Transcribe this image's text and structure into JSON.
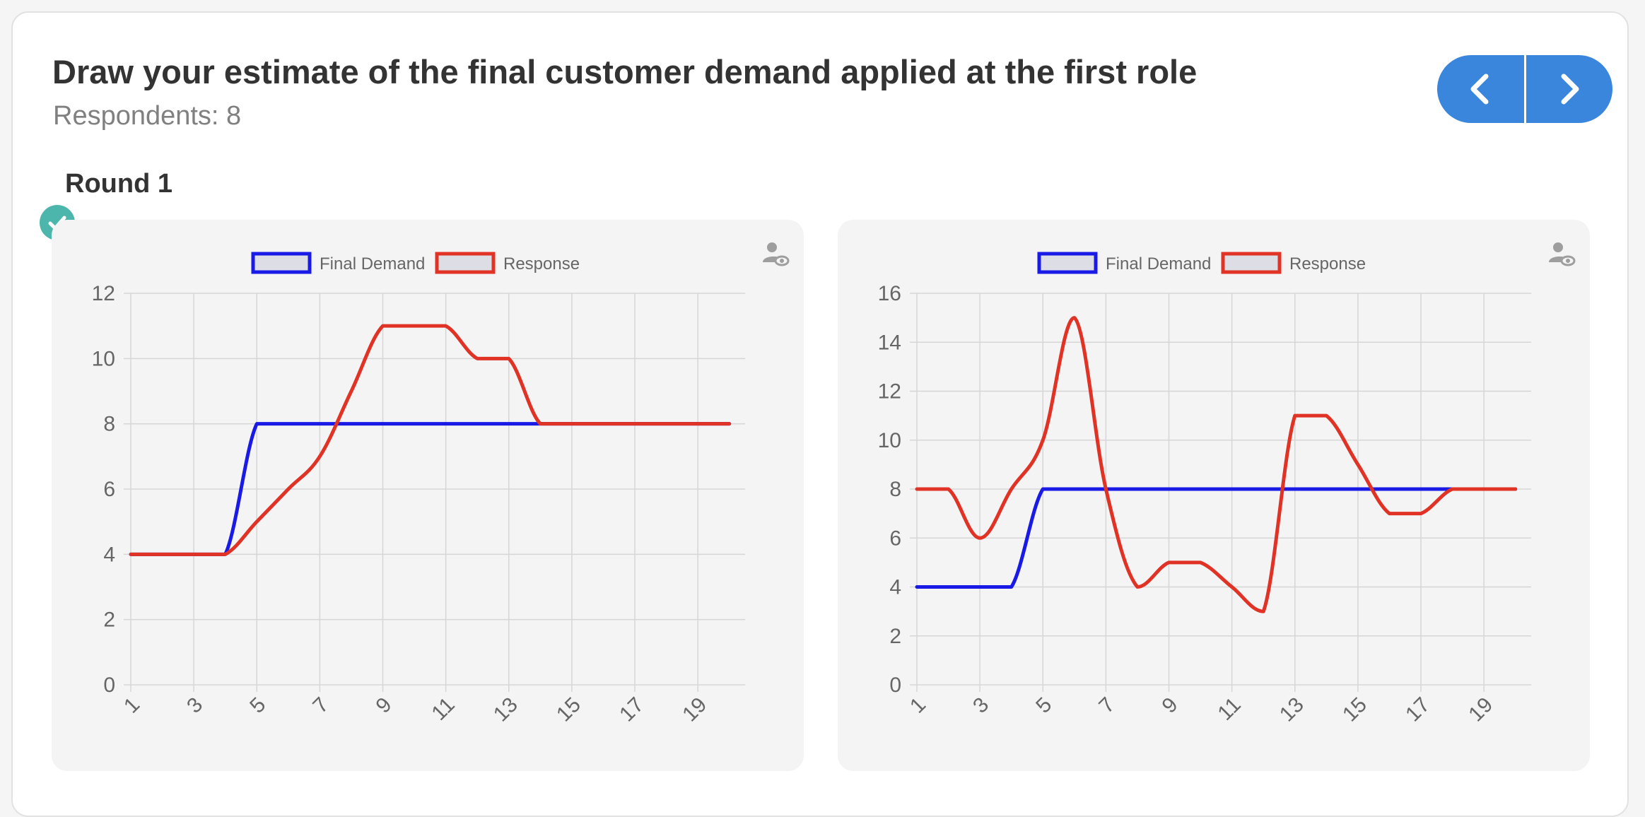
{
  "header": {
    "title": "Draw your estimate of the final customer demand applied at the first role",
    "respondents": "Respondents: 8"
  },
  "nav": {
    "prev_icon": "chevron-left-icon",
    "next_icon": "chevron-right-icon",
    "color": "#3a86dc"
  },
  "round": {
    "label": "Round 1",
    "status_icon": "check-circle-icon",
    "status_color": "#4db6ac"
  },
  "chart_data": [
    {
      "type": "line",
      "x": [
        1,
        2,
        3,
        4,
        5,
        6,
        7,
        8,
        9,
        10,
        11,
        12,
        13,
        14,
        15,
        16,
        17,
        18,
        19,
        20
      ],
      "x_tick_labels": [
        "1",
        "3",
        "5",
        "7",
        "9",
        "11",
        "13",
        "15",
        "17",
        "19"
      ],
      "ylim": [
        0,
        12
      ],
      "y_ticks": [
        0,
        2,
        4,
        6,
        8,
        10,
        12
      ],
      "grid": true,
      "legend_position": "top",
      "series": [
        {
          "name": "Final Demand",
          "color": "#1a1ae6",
          "values": [
            4,
            4,
            4,
            4,
            8,
            8,
            8,
            8,
            8,
            8,
            8,
            8,
            8,
            8,
            8,
            8,
            8,
            8,
            8,
            8
          ]
        },
        {
          "name": "Response",
          "color": "#e03326",
          "values": [
            4,
            4,
            4,
            4,
            5,
            6,
            7,
            9,
            11,
            11,
            11,
            10,
            10,
            8,
            8,
            8,
            8,
            8,
            8,
            8
          ]
        }
      ]
    },
    {
      "type": "line",
      "x": [
        1,
        2,
        3,
        4,
        5,
        6,
        7,
        8,
        9,
        10,
        11,
        12,
        13,
        14,
        15,
        16,
        17,
        18,
        19,
        20
      ],
      "x_tick_labels": [
        "1",
        "3",
        "5",
        "7",
        "9",
        "11",
        "13",
        "15",
        "17",
        "19"
      ],
      "ylim": [
        0,
        16
      ],
      "y_ticks": [
        0,
        2,
        4,
        6,
        8,
        10,
        12,
        14,
        16
      ],
      "grid": true,
      "legend_position": "top",
      "series": [
        {
          "name": "Final Demand",
          "color": "#1a1ae6",
          "values": [
            4,
            4,
            4,
            4,
            8,
            8,
            8,
            8,
            8,
            8,
            8,
            8,
            8,
            8,
            8,
            8,
            8,
            8,
            8,
            8
          ]
        },
        {
          "name": "Response",
          "color": "#e03326",
          "values": [
            8,
            8,
            6,
            8,
            10,
            15,
            8,
            4,
            5,
            5,
            4,
            3,
            11,
            11,
            9,
            7,
            7,
            8,
            8,
            8
          ]
        }
      ]
    }
  ],
  "viewer_icon": "person-eye-icon"
}
